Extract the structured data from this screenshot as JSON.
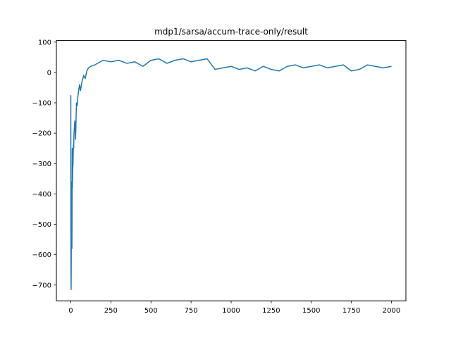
{
  "chart_data": {
    "type": "line",
    "title": "mdp1/sarsa/accum-trace-only/result",
    "xlabel": "",
    "ylabel": "",
    "xlim": [
      -90,
      2090
    ],
    "ylim": [
      -752,
      105
    ],
    "x_ticks": [
      0,
      250,
      500,
      750,
      1000,
      1250,
      1500,
      1750,
      2000
    ],
    "y_ticks": [
      100,
      0,
      -100,
      -200,
      -300,
      -400,
      -500,
      -600,
      -700
    ],
    "x_tick_labels": [
      "0",
      "250",
      "500",
      "750",
      "1000",
      "1250",
      "1500",
      "1750",
      "2000"
    ],
    "y_tick_labels": [
      "100",
      "0",
      "−100",
      "−200",
      "−300",
      "−400",
      "−500",
      "−600",
      "−700"
    ],
    "grid": false,
    "series": [
      {
        "name": "",
        "color": "#1f77b4",
        "x": [
          0,
          1,
          2,
          3,
          4,
          5,
          6,
          7,
          8,
          9,
          10,
          12,
          14,
          16,
          18,
          20,
          25,
          30,
          35,
          40,
          45,
          50,
          55,
          60,
          70,
          80,
          90,
          100,
          110,
          125,
          150,
          200,
          250,
          300,
          350,
          400,
          450,
          500,
          550,
          600,
          650,
          700,
          750,
          800,
          850,
          900,
          950,
          1000,
          1050,
          1100,
          1150,
          1200,
          1250,
          1300,
          1350,
          1400,
          1450,
          1500,
          1550,
          1600,
          1650,
          1700,
          1750,
          1800,
          1850,
          1900,
          1950,
          2000
        ],
        "values": [
          -75,
          -660,
          -715,
          -600,
          -430,
          -520,
          -360,
          -580,
          -470,
          -250,
          -380,
          -320,
          -300,
          -240,
          -250,
          -200,
          -160,
          -220,
          -100,
          -110,
          -75,
          -55,
          -40,
          -60,
          -30,
          -10,
          -20,
          5,
          15,
          20,
          25,
          40,
          35,
          40,
          30,
          35,
          20,
          40,
          45,
          30,
          40,
          45,
          35,
          40,
          45,
          10,
          15,
          20,
          10,
          15,
          5,
          20,
          10,
          5,
          20,
          25,
          15,
          20,
          25,
          15,
          20,
          25,
          5,
          10,
          25,
          20,
          15,
          20
        ]
      }
    ]
  }
}
